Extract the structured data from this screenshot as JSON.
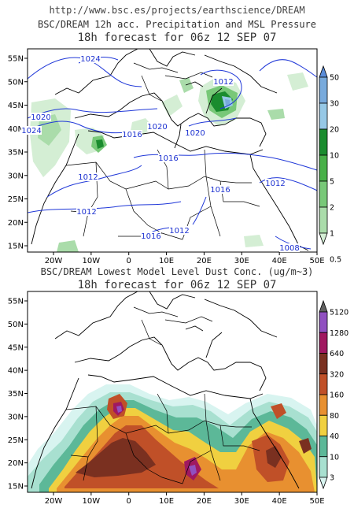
{
  "header": {
    "url": "http://www.bsc.es/projects/earthscience/DREAM"
  },
  "panels": [
    {
      "title": "BSC/DREAM 12h acc. Precipitation and MSL Pressure",
      "subtitle": "18h forecast for 06z 12 SEP 07",
      "lat_labels": [
        "55N",
        "50N",
        "45N",
        "40N",
        "35N",
        "30N",
        "25N",
        "20N",
        "15N"
      ],
      "lon_labels": [
        "20W",
        "10W",
        "0",
        "10E",
        "20E",
        "30E",
        "40E",
        "50E"
      ],
      "colorbar_labels": [
        "50",
        "30",
        "20",
        "10",
        "5",
        "2",
        "1",
        "0.5"
      ],
      "colorbar_colors": [
        "#5a8cd8",
        "#78aadc",
        "#96c8e6",
        "#1a8c2e",
        "#48b048",
        "#78c878",
        "#aadcaa",
        "#d4eed4"
      ],
      "isobar_labels": [
        "1024",
        "1020",
        "1024",
        "1012",
        "1020",
        "1020",
        "1016",
        "1012",
        "1016",
        "1016",
        "1012",
        "1012",
        "1012",
        "1016",
        "1008"
      ]
    },
    {
      "title": "BSC/DREAM Lowest Model Level Dust Conc. (ug/m~3)",
      "subtitle": "18h forecast for 06z 12 SEP 07",
      "lat_labels": [
        "55N",
        "50N",
        "45N",
        "40N",
        "35N",
        "30N",
        "25N",
        "20N",
        "15N"
      ],
      "lon_labels": [
        "20W",
        "10W",
        "0",
        "10E",
        "20E",
        "30E",
        "40E",
        "50E"
      ],
      "colorbar_labels": [
        "5120",
        "1280",
        "640",
        "320",
        "160",
        "80",
        "40",
        "10",
        "3"
      ],
      "colorbar_colors": [
        "#606060",
        "#9050c0",
        "#a01860",
        "#7a3020",
        "#c05028",
        "#e89030",
        "#f0d040",
        "#5cb898",
        "#a8e0d0",
        "#d8f4f0"
      ]
    }
  ]
}
